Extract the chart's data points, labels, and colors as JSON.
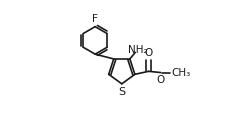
{
  "background": "#ffffff",
  "figsize": [
    2.4,
    1.21
  ],
  "dpi": 100,
  "bond_color": "#1a1a1a",
  "bond_lw": 1.2,
  "font_color": "#1a1a1a",
  "label_F": "F",
  "label_NH2": "NH₂",
  "label_O_carbonyl": "O",
  "label_O_ester": "O",
  "label_S": "S",
  "label_CH3": "CH₃",
  "xlim": [
    0.0,
    1.0
  ],
  "ylim": [
    0.0,
    1.0
  ]
}
